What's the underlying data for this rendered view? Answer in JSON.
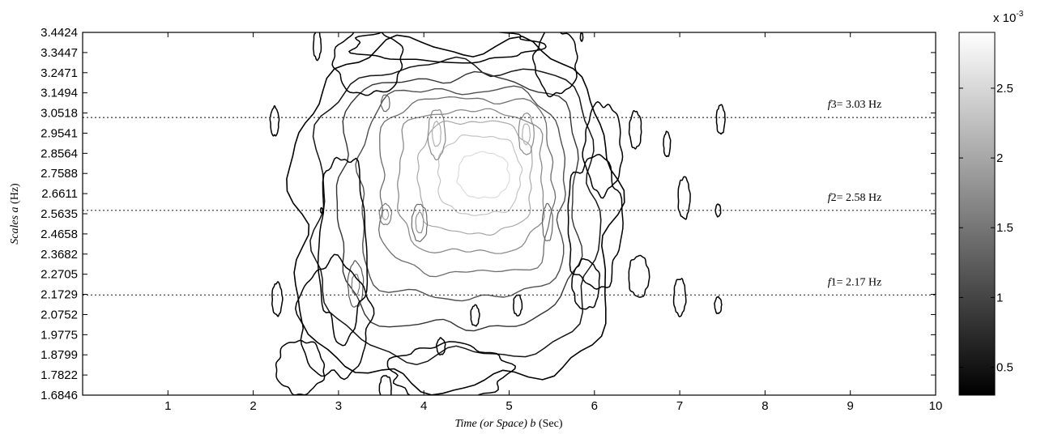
{
  "chart_data": {
    "type": "contour",
    "title": "",
    "xlabel_italic": "Time (or Space) b",
    "xlabel_unit": "(Sec)",
    "ylabel_italic": "Scales a",
    "ylabel_unit": "(Hz)",
    "xlim": [
      0,
      10
    ],
    "ylim": [
      1.6846,
      3.4424
    ],
    "x_ticks": [
      1,
      2,
      3,
      4,
      5,
      6,
      7,
      8,
      9,
      10
    ],
    "y_ticks": [
      "1.6846",
      "1.7822",
      "1.8799",
      "1.9775",
      "2.0752",
      "2.1729",
      "2.2705",
      "2.3682",
      "2.4658",
      "2.5635",
      "2.6611",
      "2.7588",
      "2.8564",
      "2.9541",
      "3.0518",
      "3.1494",
      "3.2471",
      "3.3447",
      "3.4424"
    ],
    "colorbar": {
      "ticks": [
        "0.5",
        "1",
        "1.5",
        "2",
        "2.5"
      ],
      "range": [
        0.3,
        2.9
      ],
      "exponent_label_base": "x 10",
      "exponent_label_power": "-3",
      "colormap": "gray"
    },
    "reference_lines": [
      {
        "y": 3.03,
        "label_var": "f",
        "label_sub": "3",
        "label_rest": "= 3.03  Hz"
      },
      {
        "y": 2.58,
        "label_var": "f",
        "label_sub": "2",
        "label_rest": "= 2.58  Hz"
      },
      {
        "y": 2.17,
        "label_var": "f",
        "label_sub": "1",
        "label_rest": "= 2.17  Hz"
      }
    ],
    "peak": {
      "x": 4.7,
      "y": 2.75,
      "value": 2.9
    }
  }
}
